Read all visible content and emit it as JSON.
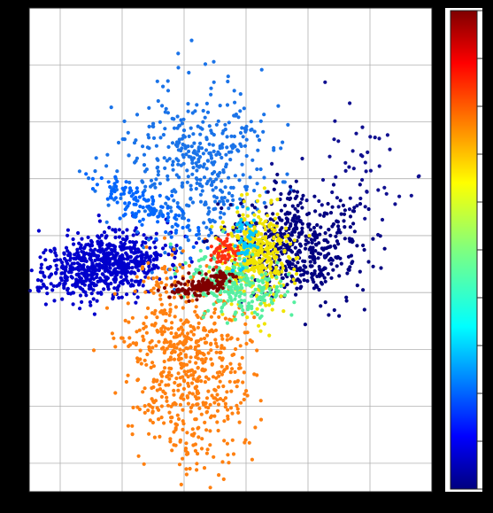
{
  "chart_data": {
    "type": "scatter",
    "title": "",
    "xlabel": "",
    "ylabel": "",
    "grid": true,
    "colorbar": {
      "present": true,
      "colormap": "jet",
      "position": "right"
    },
    "xlim": [
      -6,
      7
    ],
    "ylim": [
      -8,
      9
    ],
    "clusters": [
      {
        "color": "#0000cc",
        "cx": -3.6,
        "cy": 0.0,
        "sx": 1.0,
        "sy": 0.55,
        "rot": 0.22,
        "n": 700,
        "seed": 11
      },
      {
        "color": "#1a73e8",
        "cx": -0.7,
        "cy": 3.4,
        "sx": 1.25,
        "sy": 1.45,
        "rot": 0.0,
        "n": 450,
        "seed": 23
      },
      {
        "color": "#0066ff",
        "cx": -2.4,
        "cy": 2.1,
        "sx": 1.0,
        "sy": 0.3,
        "rot": -0.55,
        "n": 120,
        "seed": 29
      },
      {
        "color": "#ff8010",
        "cx": -0.9,
        "cy": -3.4,
        "sx": 0.95,
        "sy": 1.8,
        "rot": 0.12,
        "n": 650,
        "seed": 37
      },
      {
        "color": "#000080",
        "cx": 2.6,
        "cy": 0.6,
        "sx": 1.1,
        "sy": 0.95,
        "rot": 0.0,
        "n": 520,
        "seed": 41
      },
      {
        "color": "#101090",
        "cx": 4.3,
        "cy": 3.2,
        "sx": 1.0,
        "sy": 1.4,
        "rot": 0.3,
        "n": 55,
        "seed": 43
      },
      {
        "color": "#f0e400",
        "cx": 1.4,
        "cy": 0.2,
        "sx": 0.6,
        "sy": 0.9,
        "rot": 0.0,
        "n": 380,
        "seed": 53
      },
      {
        "color": "#55efa0",
        "cx": 0.6,
        "cy": -0.8,
        "sx": 0.8,
        "sy": 0.5,
        "rot": -0.2,
        "n": 260,
        "seed": 59
      },
      {
        "color": "#800000",
        "cx": -0.4,
        "cy": -0.7,
        "sx": 0.55,
        "sy": 0.2,
        "rot": 0.3,
        "n": 140,
        "seed": 61
      },
      {
        "color": "#ff3010",
        "cx": 0.3,
        "cy": 0.4,
        "sx": 0.25,
        "sy": 0.25,
        "rot": 0.0,
        "n": 60,
        "seed": 67
      },
      {
        "color": "#00c8ff",
        "cx": 1.0,
        "cy": 0.8,
        "sx": 0.2,
        "sy": 0.5,
        "rot": 0.0,
        "n": 50,
        "seed": 71
      }
    ]
  }
}
